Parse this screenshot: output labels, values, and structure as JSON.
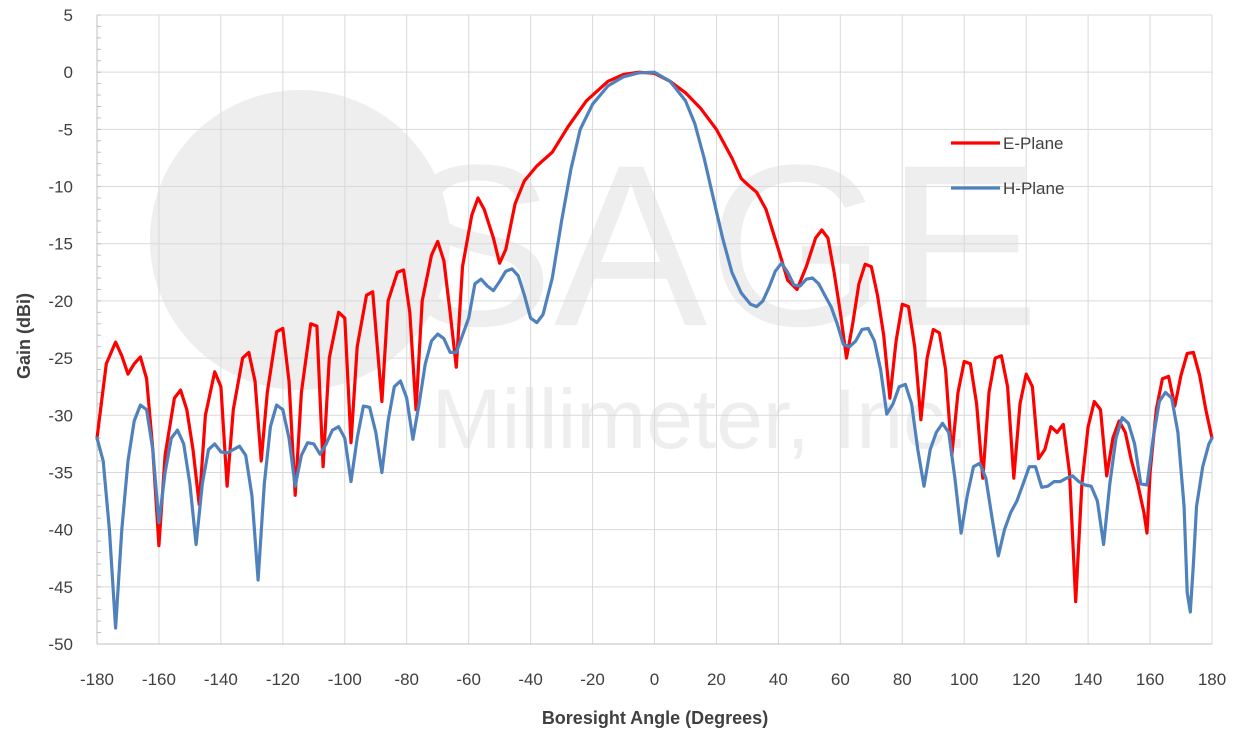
{
  "chart_data": {
    "type": "line",
    "xlabel": "Boresight Angle (Degrees)",
    "ylabel": "Gain (dBi)",
    "xlim": [
      -180,
      180
    ],
    "ylim": [
      -50,
      5
    ],
    "xticks": [
      -180,
      -160,
      -140,
      -120,
      -100,
      -80,
      -60,
      -40,
      -20,
      0,
      20,
      40,
      60,
      80,
      100,
      120,
      140,
      160,
      180
    ],
    "yticks": [
      5,
      0,
      -5,
      -10,
      -15,
      -20,
      -25,
      -30,
      -35,
      -40,
      -45,
      -50
    ],
    "grid": true,
    "legend_position": "top-right",
    "watermark": {
      "logo": "SAGE",
      "text": "Millimeter, Inc."
    },
    "series": [
      {
        "name": "E-Plane",
        "color": "#ff0000",
        "points": [
          [
            -180,
            -32
          ],
          [
            -177,
            -25.5
          ],
          [
            -174,
            -23.6
          ],
          [
            -172,
            -24.8
          ],
          [
            -170,
            -26.4
          ],
          [
            -168,
            -25.5
          ],
          [
            -166,
            -24.9
          ],
          [
            -164,
            -26.8
          ],
          [
            -162,
            -33
          ],
          [
            -160,
            -41.4
          ],
          [
            -158,
            -33.5
          ],
          [
            -155,
            -28.5
          ],
          [
            -153,
            -27.8
          ],
          [
            -151,
            -29.5
          ],
          [
            -149,
            -33
          ],
          [
            -147,
            -37.8
          ],
          [
            -145,
            -30
          ],
          [
            -142,
            -26.2
          ],
          [
            -140,
            -27.5
          ],
          [
            -138,
            -36.2
          ],
          [
            -136,
            -29.5
          ],
          [
            -133,
            -25
          ],
          [
            -131,
            -24.5
          ],
          [
            -129,
            -27
          ],
          [
            -127,
            -34
          ],
          [
            -125,
            -28
          ],
          [
            -122,
            -22.7
          ],
          [
            -120,
            -22.4
          ],
          [
            -118,
            -27
          ],
          [
            -116,
            -37
          ],
          [
            -114,
            -28
          ],
          [
            -111,
            -22
          ],
          [
            -109,
            -22.2
          ],
          [
            -107,
            -34.5
          ],
          [
            -105,
            -25
          ],
          [
            -102,
            -21
          ],
          [
            -100,
            -21.5
          ],
          [
            -98,
            -32.4
          ],
          [
            -96,
            -24
          ],
          [
            -93,
            -19.5
          ],
          [
            -91,
            -19.2
          ],
          [
            -88,
            -28.8
          ],
          [
            -86,
            -20
          ],
          [
            -83,
            -17.5
          ],
          [
            -81,
            -17.3
          ],
          [
            -79,
            -21
          ],
          [
            -77,
            -29.5
          ],
          [
            -75,
            -20
          ],
          [
            -72,
            -16
          ],
          [
            -70,
            -14.8
          ],
          [
            -68,
            -16.5
          ],
          [
            -66,
            -21
          ],
          [
            -64,
            -25.8
          ],
          [
            -62,
            -17
          ],
          [
            -59,
            -12.5
          ],
          [
            -57,
            -11
          ],
          [
            -55,
            -12
          ],
          [
            -52,
            -14.5
          ],
          [
            -50,
            -16.7
          ],
          [
            -48,
            -15.5
          ],
          [
            -45,
            -11.5
          ],
          [
            -42,
            -9.5
          ],
          [
            -38,
            -8.2
          ],
          [
            -33,
            -7
          ],
          [
            -28,
            -4.8
          ],
          [
            -22,
            -2.5
          ],
          [
            -15,
            -0.8
          ],
          [
            -10,
            -0.2
          ],
          [
            -5,
            0
          ],
          [
            0,
            -0.1
          ],
          [
            5,
            -0.8
          ],
          [
            10,
            -1.8
          ],
          [
            15,
            -3.2
          ],
          [
            20,
            -5
          ],
          [
            25,
            -7.5
          ],
          [
            28,
            -9.3
          ],
          [
            30,
            -9.8
          ],
          [
            33,
            -10.5
          ],
          [
            36,
            -12
          ],
          [
            40,
            -15.5
          ],
          [
            43,
            -18.2
          ],
          [
            46,
            -19
          ],
          [
            49,
            -17
          ],
          [
            52,
            -14.5
          ],
          [
            54,
            -13.8
          ],
          [
            56,
            -14.5
          ],
          [
            58,
            -17.5
          ],
          [
            60,
            -21
          ],
          [
            62,
            -25
          ],
          [
            64,
            -22
          ],
          [
            66,
            -18.5
          ],
          [
            68,
            -16.8
          ],
          [
            70,
            -17
          ],
          [
            72,
            -19.5
          ],
          [
            74,
            -23
          ],
          [
            76,
            -28.5
          ],
          [
            78,
            -23.5
          ],
          [
            80,
            -20.3
          ],
          [
            82,
            -20.5
          ],
          [
            84,
            -24
          ],
          [
            86,
            -30.4
          ],
          [
            88,
            -25
          ],
          [
            90,
            -22.5
          ],
          [
            92,
            -22.8
          ],
          [
            94,
            -26
          ],
          [
            96,
            -33.5
          ],
          [
            98,
            -28
          ],
          [
            100,
            -25.3
          ],
          [
            102,
            -25.5
          ],
          [
            104,
            -29
          ],
          [
            106,
            -35.5
          ],
          [
            108,
            -28
          ],
          [
            110,
            -25
          ],
          [
            112,
            -24.8
          ],
          [
            114,
            -27.5
          ],
          [
            116,
            -35.5
          ],
          [
            118,
            -29
          ],
          [
            120,
            -26.4
          ],
          [
            122,
            -27.5
          ],
          [
            124,
            -33.8
          ],
          [
            126,
            -33
          ],
          [
            128,
            -31
          ],
          [
            130,
            -31.5
          ],
          [
            132,
            -30.8
          ],
          [
            134,
            -35
          ],
          [
            136,
            -46.3
          ],
          [
            138,
            -36
          ],
          [
            140,
            -31
          ],
          [
            142,
            -28.8
          ],
          [
            144,
            -29.5
          ],
          [
            146,
            -35.3
          ],
          [
            148,
            -32
          ],
          [
            150,
            -30.5
          ],
          [
            152,
            -31.5
          ],
          [
            154,
            -34
          ],
          [
            156,
            -36
          ],
          [
            158,
            -38.5
          ],
          [
            159,
            -40.3
          ],
          [
            160,
            -35
          ],
          [
            162,
            -29.5
          ],
          [
            164,
            -26.8
          ],
          [
            166,
            -26.6
          ],
          [
            168,
            -29.2
          ],
          [
            170,
            -26.5
          ],
          [
            172,
            -24.6
          ],
          [
            174,
            -24.5
          ],
          [
            176,
            -26.5
          ],
          [
            178,
            -29.5
          ],
          [
            180,
            -32
          ]
        ]
      },
      {
        "name": "H-Plane",
        "color": "#4f81bd",
        "points": [
          [
            -180,
            -32
          ],
          [
            -178,
            -34
          ],
          [
            -176,
            -40
          ],
          [
            -174,
            -48.6
          ],
          [
            -172,
            -40
          ],
          [
            -170,
            -34
          ],
          [
            -168,
            -30.5
          ],
          [
            -166,
            -29.1
          ],
          [
            -164,
            -29.5
          ],
          [
            -162,
            -33
          ],
          [
            -160,
            -39.4
          ],
          [
            -158,
            -35
          ],
          [
            -156,
            -32
          ],
          [
            -154,
            -31.3
          ],
          [
            -152,
            -32.5
          ],
          [
            -150,
            -36
          ],
          [
            -148,
            -41.3
          ],
          [
            -146,
            -36
          ],
          [
            -144,
            -33
          ],
          [
            -142,
            -32.5
          ],
          [
            -140,
            -33.2
          ],
          [
            -138,
            -33.3
          ],
          [
            -136,
            -33
          ],
          [
            -134,
            -32.7
          ],
          [
            -132,
            -33.5
          ],
          [
            -130,
            -37
          ],
          [
            -128,
            -44.4
          ],
          [
            -126,
            -36
          ],
          [
            -124,
            -31
          ],
          [
            -122,
            -29.1
          ],
          [
            -120,
            -29.5
          ],
          [
            -118,
            -32
          ],
          [
            -116,
            -36.2
          ],
          [
            -114,
            -33.5
          ],
          [
            -112,
            -32.4
          ],
          [
            -110,
            -32.5
          ],
          [
            -108,
            -33.4
          ],
          [
            -106,
            -32.5
          ],
          [
            -104,
            -31.3
          ],
          [
            -102,
            -31
          ],
          [
            -100,
            -32
          ],
          [
            -98,
            -35.8
          ],
          [
            -96,
            -32
          ],
          [
            -94,
            -29.2
          ],
          [
            -92,
            -29.3
          ],
          [
            -90,
            -31.5
          ],
          [
            -88,
            -35
          ],
          [
            -86,
            -30.5
          ],
          [
            -84,
            -27.5
          ],
          [
            -82,
            -27
          ],
          [
            -80,
            -28.5
          ],
          [
            -78,
            -32.1
          ],
          [
            -76,
            -29
          ],
          [
            -74,
            -25.5
          ],
          [
            -72,
            -23.5
          ],
          [
            -70,
            -22.9
          ],
          [
            -68,
            -23.3
          ],
          [
            -66,
            -24.5
          ],
          [
            -64,
            -24.5
          ],
          [
            -62,
            -23
          ],
          [
            -60,
            -21.5
          ],
          [
            -58,
            -18.5
          ],
          [
            -56,
            -18.1
          ],
          [
            -54,
            -18.7
          ],
          [
            -52,
            -19.1
          ],
          [
            -50,
            -18.3
          ],
          [
            -48,
            -17.4
          ],
          [
            -46,
            -17.2
          ],
          [
            -44,
            -17.8
          ],
          [
            -42,
            -19.5
          ],
          [
            -40,
            -21.5
          ],
          [
            -38,
            -21.9
          ],
          [
            -36,
            -21.2
          ],
          [
            -33,
            -18
          ],
          [
            -30,
            -13
          ],
          [
            -27,
            -8.5
          ],
          [
            -24,
            -5
          ],
          [
            -20,
            -2.8
          ],
          [
            -15,
            -1.2
          ],
          [
            -10,
            -0.4
          ],
          [
            -5,
            -0.05
          ],
          [
            0,
            0
          ],
          [
            5,
            -0.8
          ],
          [
            10,
            -2.5
          ],
          [
            13,
            -4.5
          ],
          [
            16,
            -7.5
          ],
          [
            19,
            -11
          ],
          [
            22,
            -14.5
          ],
          [
            25,
            -17.5
          ],
          [
            28,
            -19.3
          ],
          [
            31,
            -20.3
          ],
          [
            33,
            -20.5
          ],
          [
            35,
            -20
          ],
          [
            37,
            -18.8
          ],
          [
            39,
            -17.4
          ],
          [
            41,
            -16.7
          ],
          [
            43,
            -17.5
          ],
          [
            45,
            -18.6
          ],
          [
            47,
            -18.7
          ],
          [
            49,
            -18.1
          ],
          [
            51,
            -18
          ],
          [
            53,
            -18.5
          ],
          [
            55,
            -19.5
          ],
          [
            57,
            -20.5
          ],
          [
            59,
            -22
          ],
          [
            61,
            -23.8
          ],
          [
            63,
            -24
          ],
          [
            65,
            -23.5
          ],
          [
            67,
            -22.5
          ],
          [
            69,
            -22.4
          ],
          [
            71,
            -23.5
          ],
          [
            73,
            -26
          ],
          [
            75,
            -29.9
          ],
          [
            77,
            -29
          ],
          [
            79,
            -27.5
          ],
          [
            81,
            -27.3
          ],
          [
            83,
            -29
          ],
          [
            85,
            -33
          ],
          [
            87,
            -36.2
          ],
          [
            89,
            -33
          ],
          [
            91,
            -31.5
          ],
          [
            93,
            -30.7
          ],
          [
            95,
            -31.5
          ],
          [
            97,
            -35.5
          ],
          [
            99,
            -40.3
          ],
          [
            101,
            -37
          ],
          [
            103,
            -34.5
          ],
          [
            105,
            -34.2
          ],
          [
            107,
            -35.5
          ],
          [
            109,
            -39
          ],
          [
            111,
            -42.3
          ],
          [
            113,
            -40
          ],
          [
            115,
            -38.5
          ],
          [
            117,
            -37.5
          ],
          [
            119,
            -36
          ],
          [
            121,
            -34.5
          ],
          [
            123,
            -34.5
          ],
          [
            125,
            -36.3
          ],
          [
            127,
            -36.2
          ],
          [
            129,
            -35.8
          ],
          [
            131,
            -35.8
          ],
          [
            133,
            -35.5
          ],
          [
            135,
            -35.3
          ],
          [
            137,
            -35.8
          ],
          [
            139,
            -36.1
          ],
          [
            141,
            -36.2
          ],
          [
            143,
            -37.5
          ],
          [
            145,
            -41.3
          ],
          [
            147,
            -36
          ],
          [
            149,
            -32
          ],
          [
            151,
            -30.2
          ],
          [
            153,
            -30.7
          ],
          [
            155,
            -32.5
          ],
          [
            157,
            -36
          ],
          [
            159,
            -36.1
          ],
          [
            161,
            -32
          ],
          [
            163,
            -28.8
          ],
          [
            165,
            -28
          ],
          [
            167,
            -28.5
          ],
          [
            169,
            -31.5
          ],
          [
            171,
            -38
          ],
          [
            172,
            -45.5
          ],
          [
            173,
            -47.2
          ],
          [
            174,
            -43
          ],
          [
            175,
            -38
          ],
          [
            177,
            -34.5
          ],
          [
            179,
            -32.5
          ],
          [
            180,
            -32
          ]
        ]
      }
    ]
  }
}
